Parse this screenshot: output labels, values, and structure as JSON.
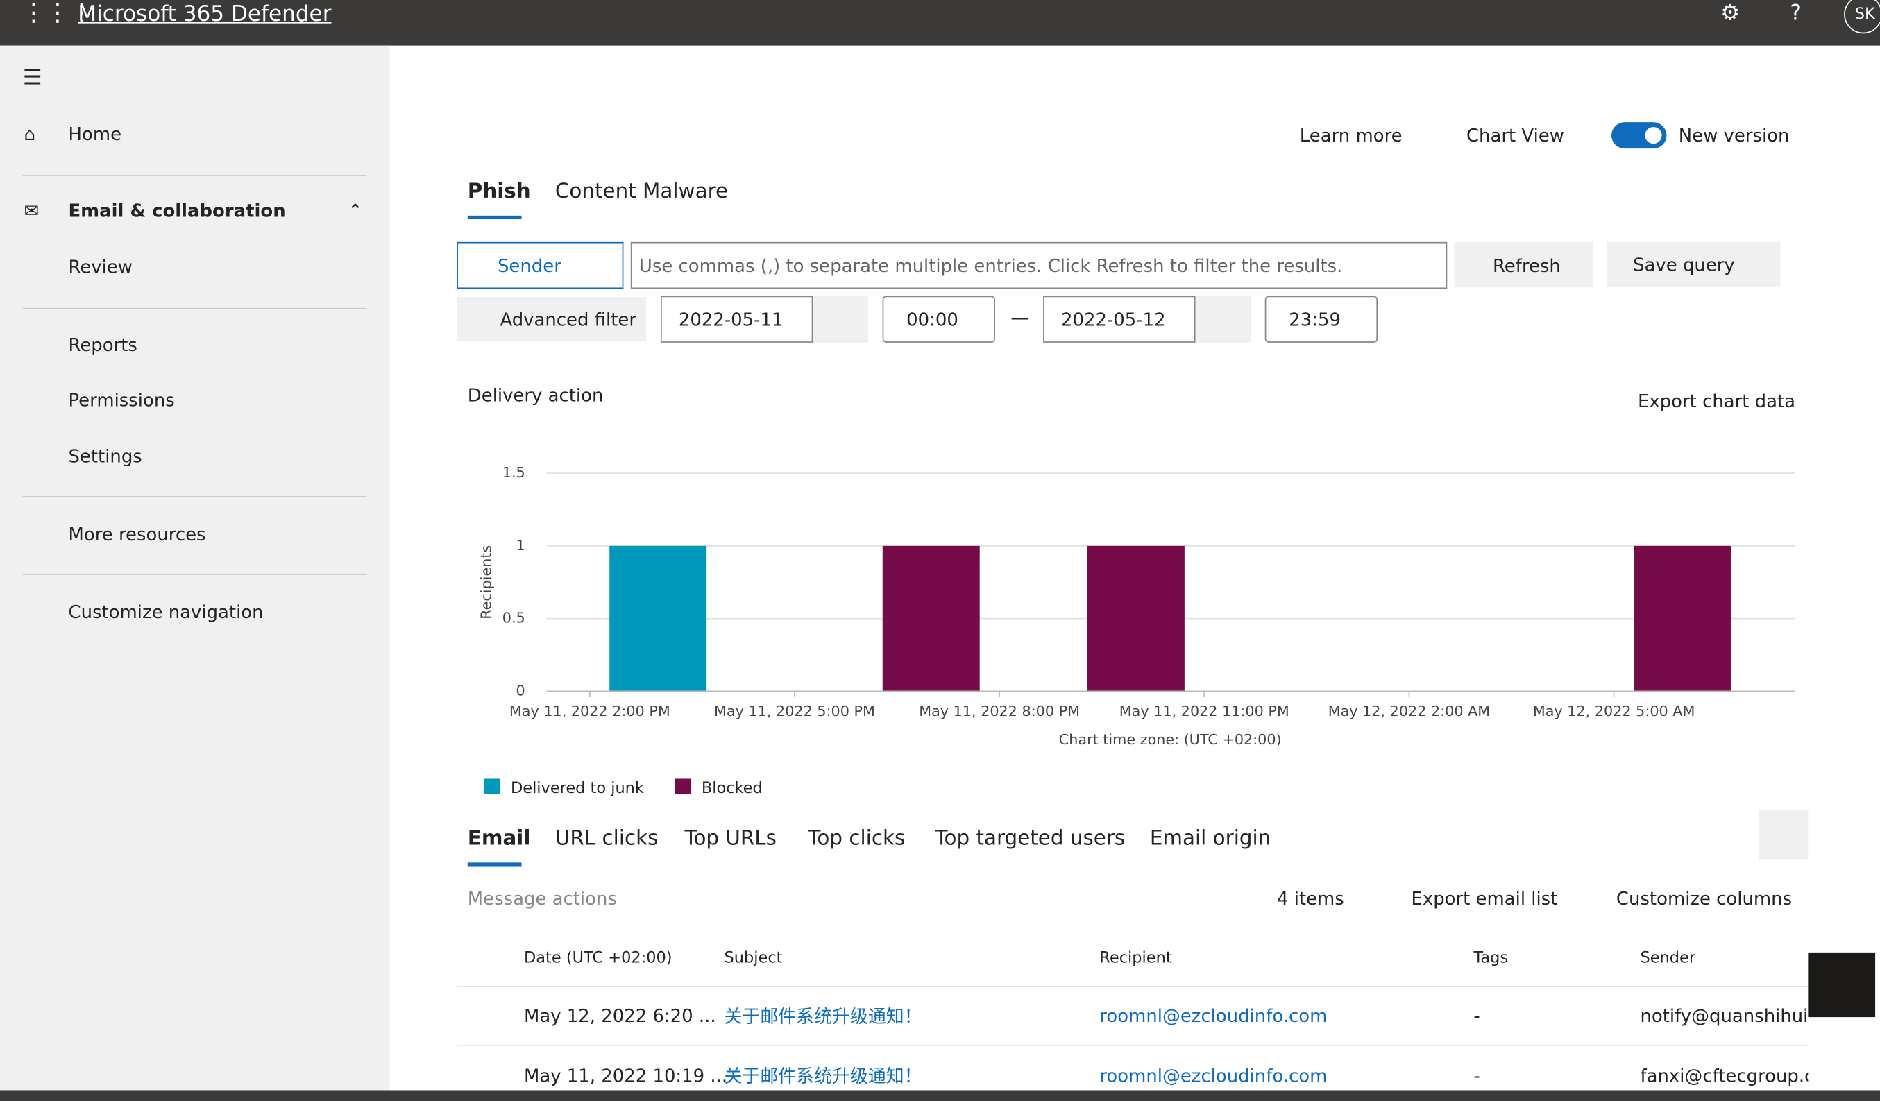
{
  "header": {
    "app_title": "Microsoft 365 Defender",
    "user_initials": "SK"
  },
  "nav": {
    "items": [
      "Home",
      "Email & collaboration",
      "Review",
      "Reports",
      "Permissions",
      "Settings",
      "More resources",
      "Customize navigation"
    ]
  },
  "toolbar": {
    "learn_more": "Learn more",
    "chart_view": "Chart View",
    "new_version": "New version"
  },
  "view_tabs": [
    "Phish",
    "Content Malware"
  ],
  "filter": {
    "field": "Sender",
    "placeholder": "Use commas (,) to separate multiple entries. Click Refresh to filter the results.",
    "refresh": "Refresh",
    "save_query": "Save query",
    "advanced_filter": "Advanced filter",
    "start_date": "2022-05-11",
    "start_time": "00:00",
    "end_date": "2022-05-12",
    "end_time": "23:59"
  },
  "chart_controls": {
    "pivot": "Delivery action",
    "export": "Export chart data"
  },
  "chart_data": {
    "type": "bar",
    "y_label": "Recipients",
    "x_label": "Chart time zone: (UTC +02:00)",
    "ylim": [
      0,
      1.5
    ],
    "yticks": [
      0,
      0.5,
      1,
      1.5
    ],
    "grid": true,
    "xlim": [
      13.37,
      31.65
    ],
    "xticks": [
      {
        "value": 14,
        "label": "May 11, 2022 2:00 PM"
      },
      {
        "value": 17,
        "label": "May 11, 2022 5:00 PM"
      },
      {
        "value": 20,
        "label": "May 11, 2022 8:00 PM"
      },
      {
        "value": 23,
        "label": "May 11, 2022 11:00 PM"
      },
      {
        "value": 26,
        "label": "May 12, 2022 2:00 AM"
      },
      {
        "value": 29,
        "label": "May 12, 2022 5:00 AM"
      }
    ],
    "series": [
      {
        "name": "Delivered to junk",
        "color": "#0099bc",
        "x": [
          15
        ],
        "values": [
          1
        ]
      },
      {
        "name": "Blocked",
        "color": "#750b49",
        "x": [
          19,
          22,
          30
        ],
        "values": [
          1,
          1,
          1
        ]
      }
    ]
  },
  "details_tabs": [
    "Email",
    "URL clicks",
    "Top URLs",
    "Top clicks",
    "Top targeted users",
    "Email origin"
  ],
  "list_toolbar": {
    "message_actions": "Message actions",
    "count": "4 items",
    "export": "Export email list",
    "customize": "Customize columns"
  },
  "table": {
    "columns": [
      "Date (UTC +02:00)",
      "Subject",
      "Recipient",
      "Tags",
      "Sender"
    ],
    "rows": [
      [
        "May 12, 2022 6:20 ...",
        "关于邮件系统升级通知！",
        "roomnl@ezcloudinfo.com",
        "-",
        "notify@quanshihuiy"
      ],
      [
        "May 11, 2022 10:19 ...",
        "关于邮件系统升级通知！",
        "roomnl@ezcloudinfo.com",
        "-",
        "fanxi@cftecgroup.c"
      ]
    ]
  }
}
